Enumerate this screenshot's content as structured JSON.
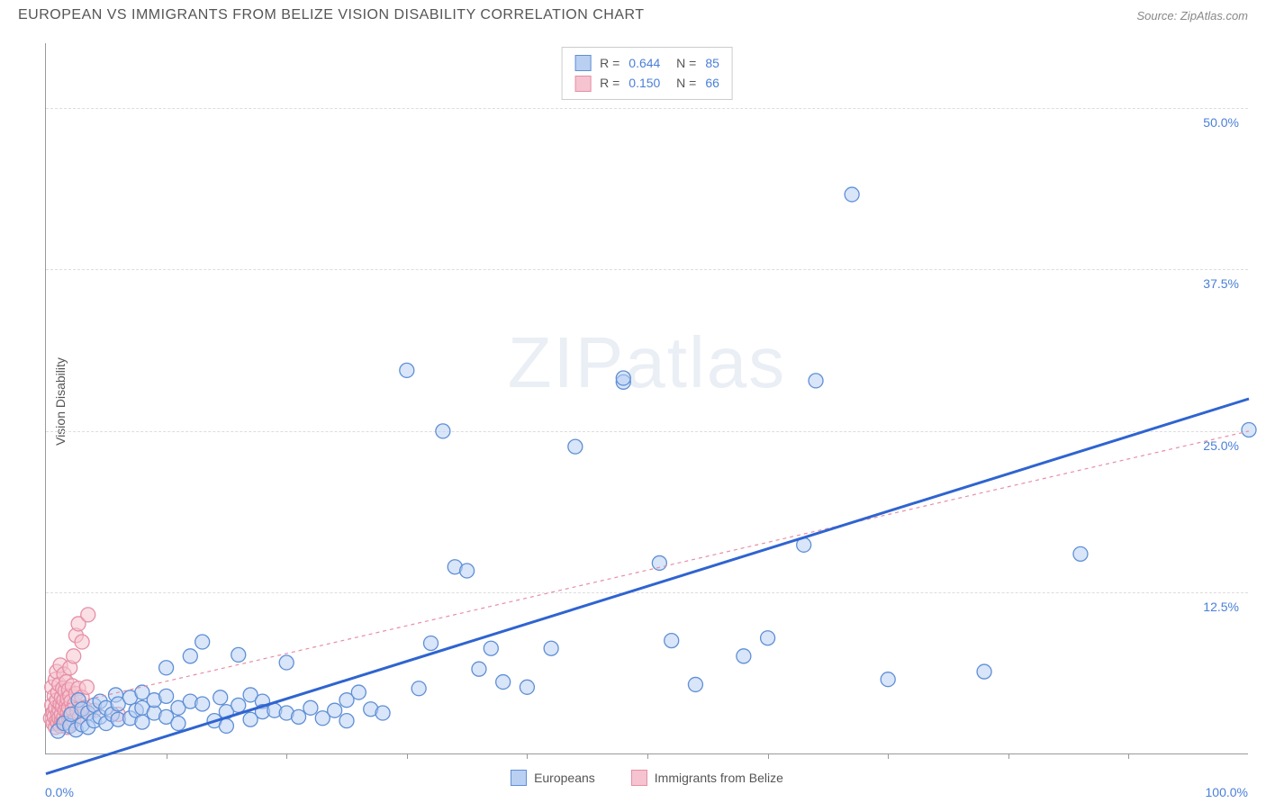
{
  "header": {
    "title": "EUROPEAN VS IMMIGRANTS FROM BELIZE VISION DISABILITY CORRELATION CHART",
    "source_label": "Source: ZipAtlas.com"
  },
  "watermark": {
    "text_a": "ZIP",
    "text_b": "atlas"
  },
  "axes": {
    "y_label": "Vision Disability",
    "x_min_label": "0.0%",
    "x_max_label": "100.0%",
    "y_tick_labels": [
      "12.5%",
      "25.0%",
      "37.5%",
      "50.0%"
    ],
    "y_tick_values": [
      12.5,
      25.0,
      37.5,
      50.0
    ],
    "x_tick_positions": [
      10,
      20,
      30,
      40,
      50,
      60,
      70,
      80,
      90
    ],
    "xlim": [
      0,
      100
    ],
    "ylim": [
      0,
      55
    ]
  },
  "series": {
    "europeans": {
      "label": "Europeans",
      "fill": "#b9d0f2",
      "stroke": "#5e8fd6",
      "line_color": "#2f64d0",
      "line_width": 3,
      "line_dash": "none",
      "R": "0.644",
      "N": "85",
      "trend": {
        "x1": 0,
        "y1": -1.5,
        "x2": 100,
        "y2": 27.5
      },
      "points": [
        [
          1,
          1.8
        ],
        [
          1.5,
          2.4
        ],
        [
          2,
          2.2
        ],
        [
          2.1,
          3.1
        ],
        [
          2.5,
          1.9
        ],
        [
          2.7,
          4.2
        ],
        [
          3,
          2.3
        ],
        [
          3,
          3.5
        ],
        [
          3.5,
          3.2
        ],
        [
          3.5,
          2.1
        ],
        [
          4,
          3.8
        ],
        [
          4,
          2.6
        ],
        [
          4.5,
          2.9
        ],
        [
          4.5,
          4.1
        ],
        [
          5,
          2.4
        ],
        [
          5,
          3.6
        ],
        [
          5.5,
          3.1
        ],
        [
          5.8,
          4.6
        ],
        [
          6,
          2.7
        ],
        [
          6,
          3.9
        ],
        [
          7,
          2.8
        ],
        [
          7,
          4.4
        ],
        [
          7.5,
          3.4
        ],
        [
          8,
          2.5
        ],
        [
          8,
          4.8
        ],
        [
          8,
          3.6
        ],
        [
          9,
          3.2
        ],
        [
          9,
          4.2
        ],
        [
          10,
          2.9
        ],
        [
          10,
          4.5
        ],
        [
          10,
          6.7
        ],
        [
          11,
          3.6
        ],
        [
          11,
          2.4
        ],
        [
          12,
          4.1
        ],
        [
          12,
          7.6
        ],
        [
          13,
          8.7
        ],
        [
          13,
          3.9
        ],
        [
          14,
          2.6
        ],
        [
          14.5,
          4.4
        ],
        [
          15,
          3.3
        ],
        [
          15,
          2.2
        ],
        [
          16,
          7.7
        ],
        [
          16,
          3.8
        ],
        [
          17,
          2.7
        ],
        [
          17,
          4.6
        ],
        [
          18,
          4.1
        ],
        [
          18,
          3.3
        ],
        [
          19,
          3.4
        ],
        [
          20,
          7.1
        ],
        [
          20,
          3.2
        ],
        [
          21,
          2.9
        ],
        [
          22,
          3.6
        ],
        [
          23,
          2.8
        ],
        [
          24,
          3.4
        ],
        [
          25,
          2.6
        ],
        [
          25,
          4.2
        ],
        [
          26,
          4.8
        ],
        [
          27,
          3.5
        ],
        [
          28,
          3.2
        ],
        [
          30,
          29.7
        ],
        [
          31,
          5.1
        ],
        [
          32,
          8.6
        ],
        [
          33,
          25.0
        ],
        [
          34,
          14.5
        ],
        [
          35,
          14.2
        ],
        [
          36,
          6.6
        ],
        [
          37,
          8.2
        ],
        [
          38,
          5.6
        ],
        [
          40,
          5.2
        ],
        [
          42,
          8.2
        ],
        [
          44,
          23.8
        ],
        [
          48,
          28.8
        ],
        [
          48,
          29.1
        ],
        [
          51,
          14.8
        ],
        [
          52,
          8.8
        ],
        [
          54,
          5.4
        ],
        [
          58,
          7.6
        ],
        [
          60,
          9.0
        ],
        [
          63,
          16.2
        ],
        [
          64,
          28.9
        ],
        [
          67,
          43.3
        ],
        [
          70,
          5.8
        ],
        [
          78,
          6.4
        ],
        [
          86,
          15.5
        ],
        [
          100,
          25.1
        ]
      ]
    },
    "belize": {
      "label": "Immigrants from Belize",
      "fill": "#f5c4d0",
      "stroke": "#e68fa6",
      "line_color": "#e68fa6",
      "line_width": 1.2,
      "line_dash": "4 4",
      "R": "0.150",
      "N": "66",
      "trend": {
        "x1": 0,
        "y1": 3.5,
        "x2": 100,
        "y2": 25.0
      },
      "points": [
        [
          0.4,
          2.8
        ],
        [
          0.5,
          3.8
        ],
        [
          0.5,
          5.2
        ],
        [
          0.6,
          2.4
        ],
        [
          0.6,
          3.2
        ],
        [
          0.7,
          4.5
        ],
        [
          0.7,
          2.9
        ],
        [
          0.8,
          2.1
        ],
        [
          0.8,
          5.8
        ],
        [
          0.8,
          3.6
        ],
        [
          0.9,
          2.6
        ],
        [
          0.9,
          4.2
        ],
        [
          0.9,
          6.4
        ],
        [
          1.0,
          3.1
        ],
        [
          1.0,
          2.4
        ],
        [
          1.0,
          4.8
        ],
        [
          1.1,
          3.5
        ],
        [
          1.1,
          2.8
        ],
        [
          1.1,
          5.4
        ],
        [
          1.2,
          2.2
        ],
        [
          1.2,
          3.9
        ],
        [
          1.2,
          6.9
        ],
        [
          1.3,
          2.6
        ],
        [
          1.3,
          4.4
        ],
        [
          1.3,
          3.1
        ],
        [
          1.4,
          5.1
        ],
        [
          1.4,
          2.4
        ],
        [
          1.4,
          3.7
        ],
        [
          1.5,
          4.2
        ],
        [
          1.5,
          2.9
        ],
        [
          1.5,
          6.2
        ],
        [
          1.6,
          3.4
        ],
        [
          1.6,
          4.9
        ],
        [
          1.6,
          2.5
        ],
        [
          1.7,
          3.8
        ],
        [
          1.7,
          5.6
        ],
        [
          1.7,
          2.7
        ],
        [
          1.8,
          4.3
        ],
        [
          1.8,
          3.2
        ],
        [
          1.8,
          2.1
        ],
        [
          1.9,
          5.0
        ],
        [
          1.9,
          3.6
        ],
        [
          1.9,
          2.8
        ],
        [
          2.0,
          4.5
        ],
        [
          2.0,
          3.0
        ],
        [
          2.0,
          6.7
        ],
        [
          2.1,
          2.4
        ],
        [
          2.1,
          4.1
        ],
        [
          2.2,
          3.5
        ],
        [
          2.2,
          5.3
        ],
        [
          2.3,
          2.6
        ],
        [
          2.3,
          7.6
        ],
        [
          2.4,
          3.9
        ],
        [
          2.5,
          4.7
        ],
        [
          2.5,
          9.2
        ],
        [
          2.6,
          3.3
        ],
        [
          2.7,
          5.1
        ],
        [
          2.7,
          10.1
        ],
        [
          2.8,
          2.9
        ],
        [
          3.0,
          4.4
        ],
        [
          3.0,
          8.7
        ],
        [
          3.2,
          3.6
        ],
        [
          3.4,
          5.2
        ],
        [
          3.5,
          10.8
        ],
        [
          4.0,
          3.4
        ],
        [
          6.0,
          3.1
        ]
      ]
    }
  },
  "colors": {
    "background": "#ffffff",
    "grid": "#dddddd",
    "axis_text": "#555555",
    "value_text": "#4a7fd8",
    "source_text": "#888888"
  },
  "sizes": {
    "marker_radius": 8,
    "marker_stroke": 1.3,
    "marker_opacity": 0.55
  }
}
